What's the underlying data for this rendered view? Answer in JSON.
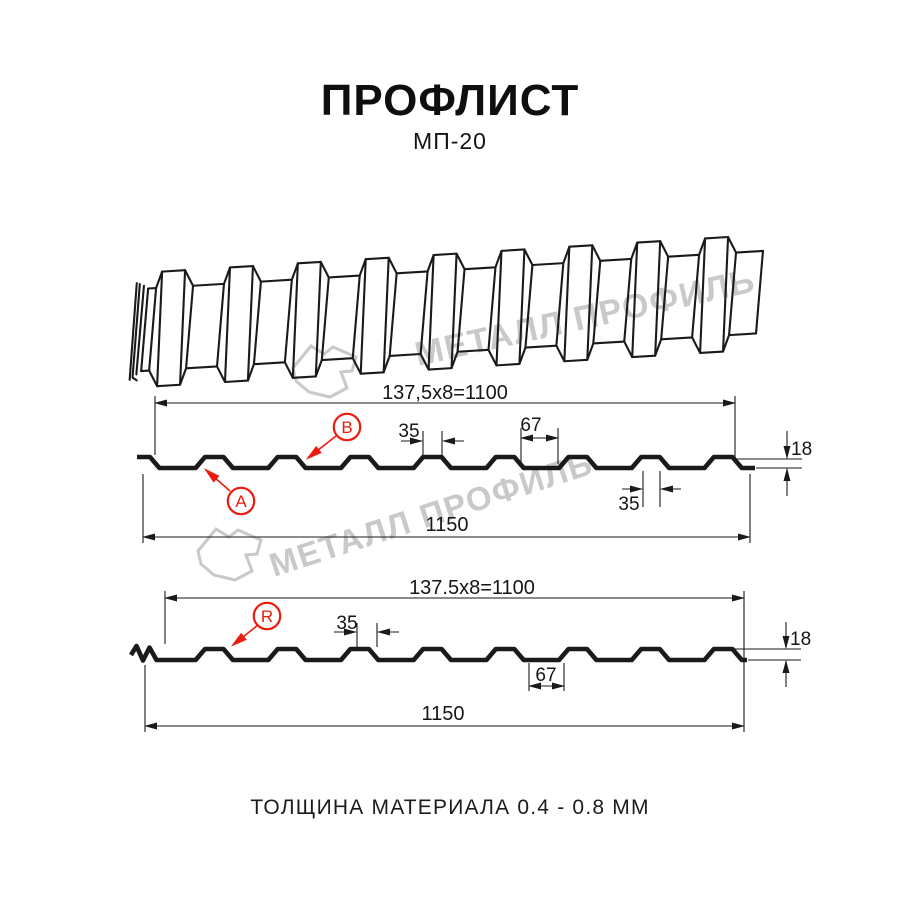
{
  "page": {
    "title": "ПРОФЛИСТ",
    "subtitle": "МП-20",
    "footer": "ТОЛЩИНА МАТЕРИАЛА 0.4 - 0.8 ММ"
  },
  "watermark": {
    "text1": "МЕТАЛЛ ПРОФИЛЬ",
    "text2": "МЕТАЛЛ ПРОФИЛЬ"
  },
  "colors": {
    "line": "#1a1a1a",
    "red": "#ed1b0e",
    "watermark": "#c9c9c9",
    "background": "#ffffff"
  },
  "section1": {
    "top_dimension": "137,5x8=1100",
    "overall_width": "1150",
    "rib_top_width": "35",
    "valley_width": "67",
    "profile_height": "18",
    "rib_top_width_below": "35",
    "callout_a": "A",
    "callout_b": "B"
  },
  "section2": {
    "top_dimension": "137.5x8=1100",
    "overall_width": "1150",
    "rib_top_width": "35",
    "valley_width": "67",
    "profile_height": "18",
    "radius_callout": "R"
  }
}
